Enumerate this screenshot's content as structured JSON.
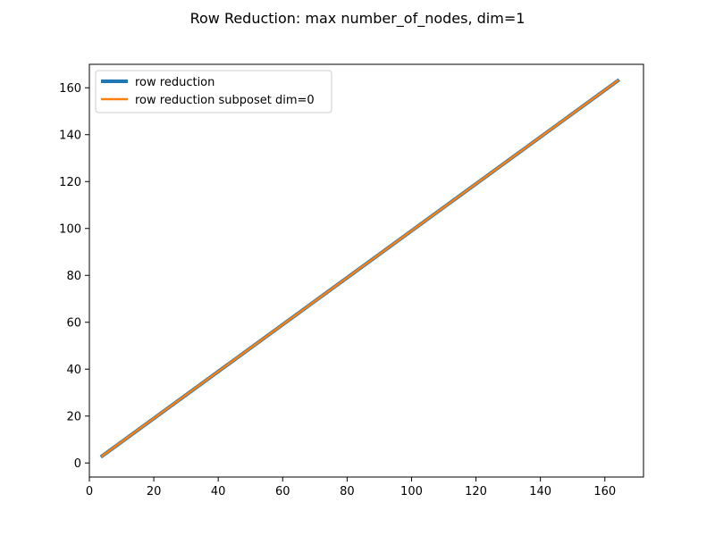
{
  "chart_data": {
    "type": "line",
    "title": "Row Reduction: max number_of_nodes, dim=1",
    "xlabel": "",
    "ylabel": "",
    "xlim": [
      0,
      172
    ],
    "ylim": [
      -6,
      170
    ],
    "xticks": [
      0,
      20,
      40,
      60,
      80,
      100,
      120,
      140,
      160
    ],
    "yticks": [
      0,
      20,
      40,
      60,
      80,
      100,
      120,
      140,
      160
    ],
    "grid": false,
    "legend_position": "upper-left",
    "series": [
      {
        "name": "row reduction",
        "color": "#1f77b4",
        "x": [
          4,
          164
        ],
        "y": [
          3,
          163
        ]
      },
      {
        "name": "row reduction subposet dim=0",
        "color": "#ff7f0e",
        "x": [
          4,
          164
        ],
        "y": [
          3,
          163
        ]
      }
    ]
  }
}
